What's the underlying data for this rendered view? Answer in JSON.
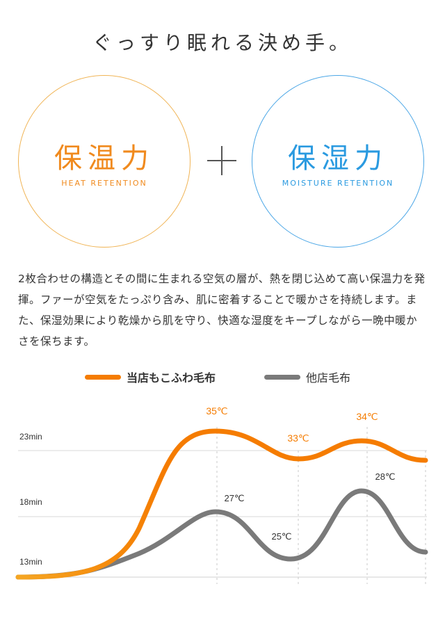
{
  "title": "ぐっすり眠れる決め手。",
  "circles": {
    "heat": {
      "label": "保温力",
      "sub": "HEAT RETENTION"
    },
    "moisture": {
      "label": "保湿力",
      "sub": "MOISTURE RETENTION"
    }
  },
  "description": "2枚合わせの構造とその間に生まれる空気の層が、熱を閉じ込めて高い保温力を発揮。ファーが空気をたっぷり含み、肌に密着することで暖かさを持続します。また、保湿効果により乾燥から肌を守り、快適な湿度をキープしながら一晩中暖かさを保ちます。",
  "colors": {
    "ours": "#f57c00",
    "other": "#7a7a7a",
    "heat": "#f08a1e",
    "moisture": "#2a9ae0"
  },
  "chart_data": {
    "type": "line",
    "y_ticks": [
      "23min",
      "18min",
      "13min"
    ],
    "series": [
      {
        "name": "当店もこふわ毛布",
        "peaks": [
          {
            "label": "35℃"
          },
          {
            "label": "33℃"
          },
          {
            "label": "34℃"
          }
        ]
      },
      {
        "name": "他店毛布",
        "peaks": [
          {
            "label": "27℃"
          },
          {
            "label": "25℃"
          },
          {
            "label": "28℃"
          }
        ]
      }
    ],
    "grid": true
  }
}
